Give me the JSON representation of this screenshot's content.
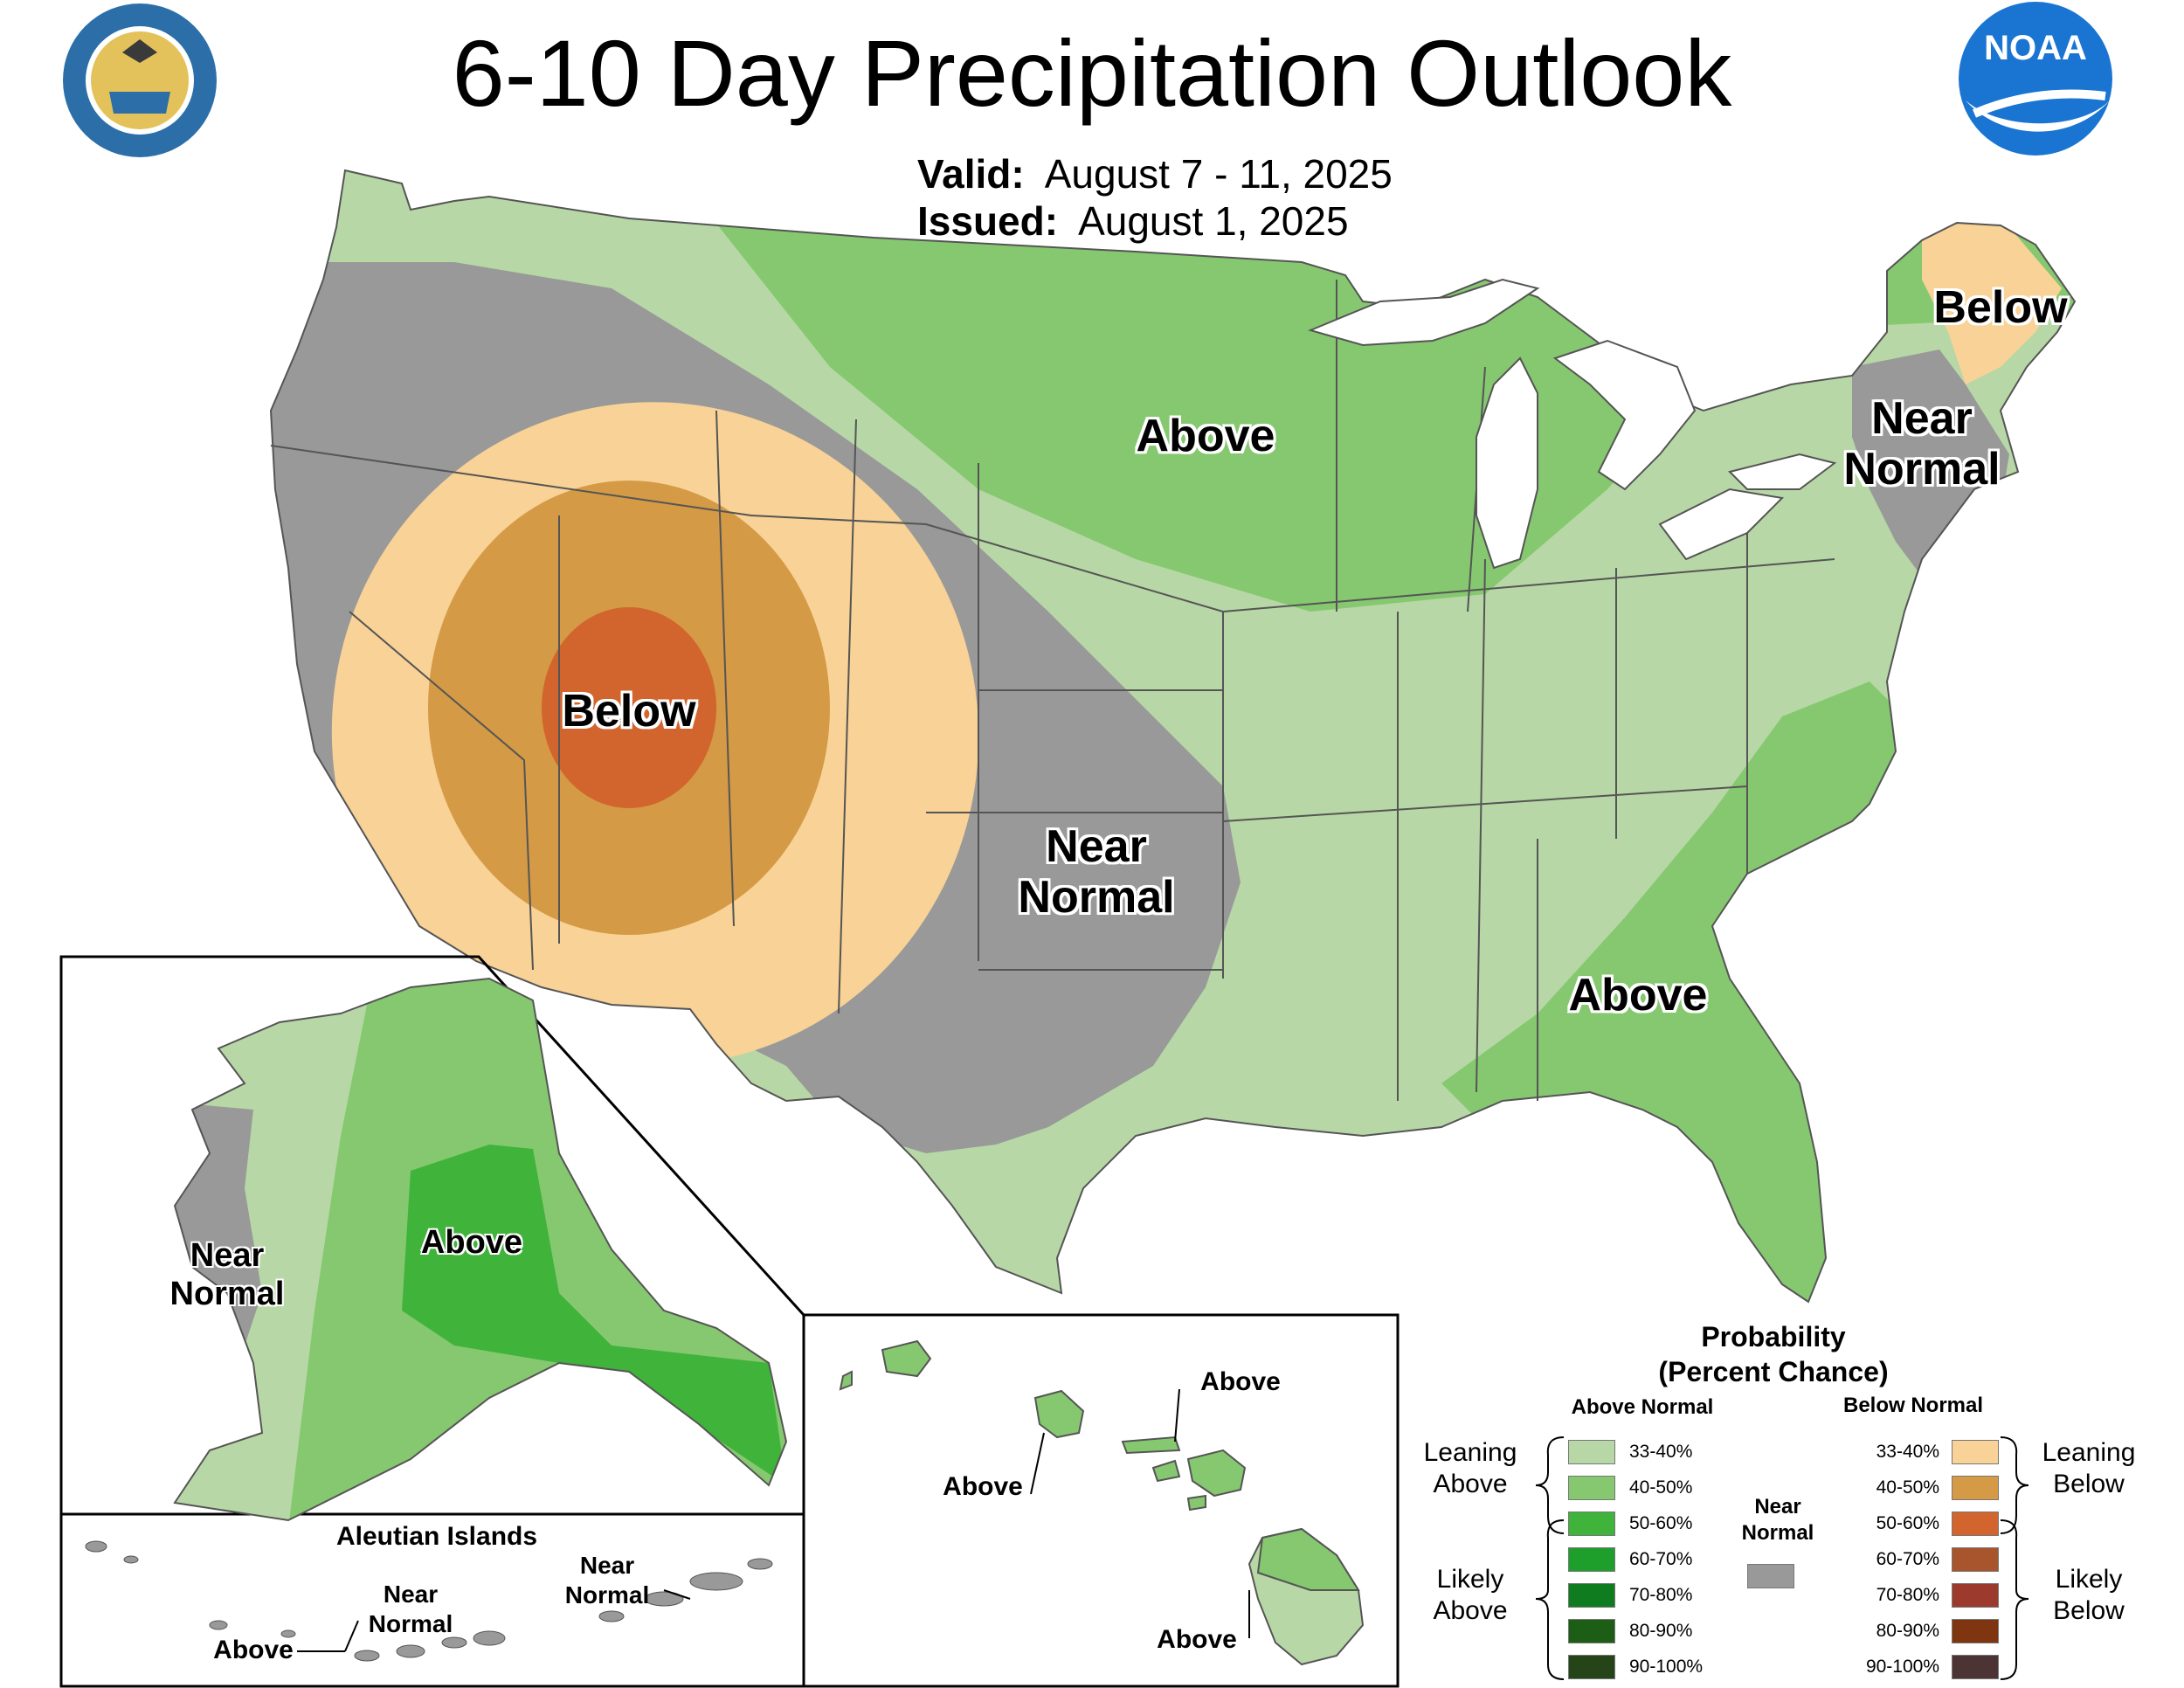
{
  "title": "6-10 Day Precipitation Outlook",
  "valid_label": "Valid:",
  "valid_dates": "August 7 - 11, 2025",
  "issued_label": "Issued:",
  "issued_date": "August 1, 2025",
  "logos": {
    "left": "seal-icon",
    "right": "noaa-logo-icon",
    "right_text": "NOAA"
  },
  "colors": {
    "above_33_40": "#b7d8a6",
    "above_40_50": "#86c870",
    "above_50_60": "#3fb33a",
    "above_60_70": "#1e9f2c",
    "above_70_80": "#0f7d1f",
    "above_80_90": "#1d5e16",
    "above_90_100": "#254417",
    "below_33_40": "#f8d296",
    "below_40_50": "#d49a45",
    "below_50_60": "#d2652d",
    "below_60_70": "#a8542c",
    "below_70_80": "#9c3b2d",
    "below_80_90": "#7e3510",
    "below_90_100": "#4c3434",
    "near_normal": "#999999"
  },
  "conus_labels": {
    "above_north": "Above",
    "below_west": "Below",
    "near_normal_plains": "Near\nNormal",
    "near_normal_ne": "Near\nNormal",
    "below_maine": "Below",
    "above_southeast": "Above"
  },
  "alaska": {
    "near_normal": "Near\nNormal",
    "above": "Above"
  },
  "aleutian": {
    "title": "Aleutian Islands",
    "above": "Above",
    "near_normal_1": "Near\nNormal",
    "near_normal_2": "Near\nNormal"
  },
  "hawaii": {
    "above_1": "Above",
    "above_2": "Above",
    "above_3": "Above"
  },
  "legend": {
    "title": "Probability\n(Percent Chance)",
    "above_header": "Above Normal",
    "below_header": "Below Normal",
    "near_normal": "Near\nNormal",
    "leaning_above": "Leaning\nAbove",
    "likely_above": "Likely\nAbove",
    "leaning_below": "Leaning\nBelow",
    "likely_below": "Likely\nBelow",
    "pcts": [
      "33-40%",
      "40-50%",
      "50-60%",
      "60-70%",
      "70-80%",
      "80-90%",
      "90-100%"
    ]
  }
}
